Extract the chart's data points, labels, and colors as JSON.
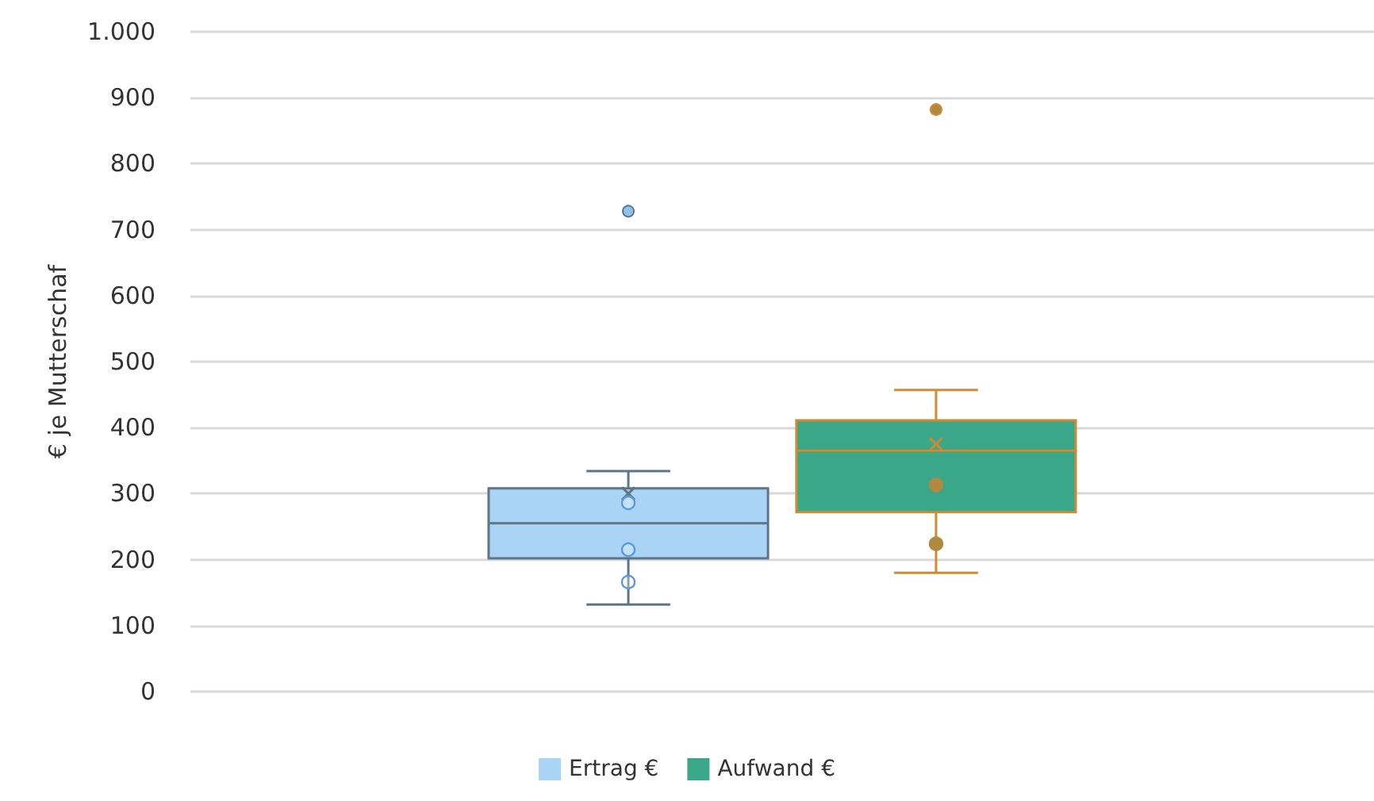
{
  "chart_data": {
    "type": "box",
    "ylabel": "€ je Mutterschaf",
    "categories": [
      null
    ],
    "series": [
      {
        "name": "Ertrag €",
        "color": "#a9d4f5",
        "boxes": [
          {
            "low": 132,
            "q1": 202,
            "median": 255,
            "q3": 308,
            "high": 334,
            "mean": 300,
            "outliers": [
              728
            ]
          }
        ]
      },
      {
        "name": "Aufwand €",
        "color": "#3aa888",
        "boxes": [
          {
            "low": 180,
            "q1": 272,
            "median": 365,
            "q3": 411,
            "high": 457,
            "mean": 375,
            "outliers": [
              882
            ]
          }
        ]
      },
      {
        "type": "scatter",
        "color": "#5b9bd5",
        "x": [
          null,
          null,
          null
        ],
        "values": [
          286,
          215,
          166
        ]
      },
      {
        "type": "scatter",
        "color": "#b08a40",
        "x": [
          null,
          null
        ],
        "values": [
          313,
          224
        ]
      }
    ],
    "ylim": [
      0,
      1000
    ],
    "yticks": [
      0,
      100,
      200,
      300,
      400,
      500,
      600,
      700,
      800,
      900,
      {
        "value": 1000,
        "label": "1.000"
      }
    ],
    "grid": "y",
    "legend": "bottom",
    "marker": "circle"
  }
}
